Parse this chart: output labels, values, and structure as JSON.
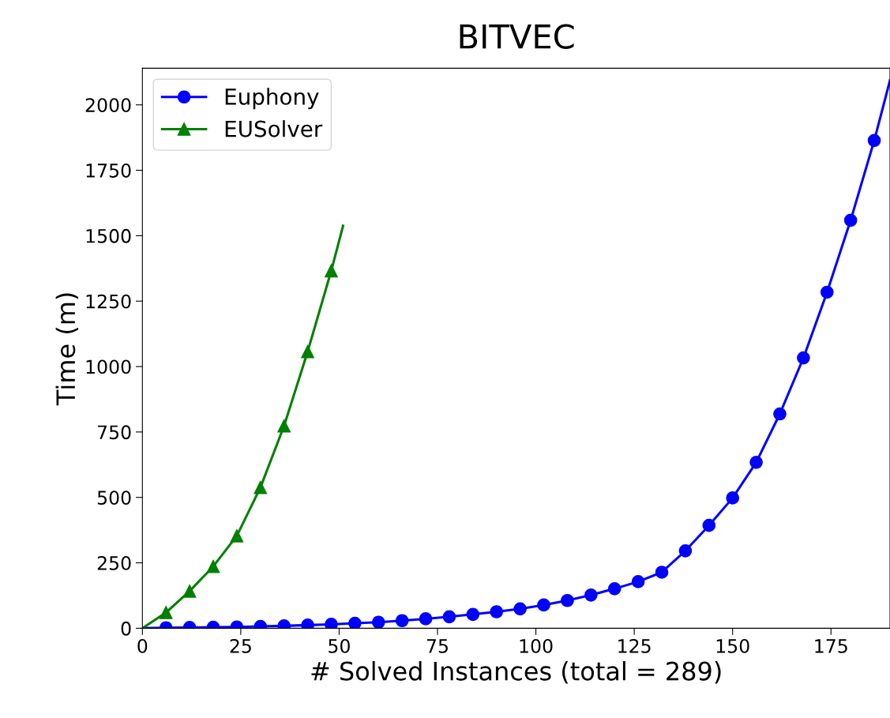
{
  "chart_data": {
    "type": "line",
    "title": "BITVEC",
    "xlabel": "# Solved Instances (total = 289)",
    "ylabel": "Time (m)",
    "xlim": [
      0,
      190
    ],
    "ylim": [
      0,
      2140
    ],
    "xticks": [
      0,
      25,
      50,
      75,
      100,
      125,
      150,
      175
    ],
    "yticks": [
      0,
      250,
      500,
      750,
      1000,
      1250,
      1500,
      1750,
      2000
    ],
    "grid": false,
    "legend": "top left",
    "series": [
      {
        "name": "Euphony",
        "color": "#0000ff",
        "marker": "circle",
        "x": [
          0,
          6,
          12,
          18,
          24,
          30,
          36,
          42,
          48,
          54,
          60,
          66,
          72,
          78,
          84,
          90,
          96,
          102,
          108,
          114,
          120,
          126,
          132,
          138,
          144,
          150,
          156,
          162,
          168,
          174,
          180,
          186,
          190
        ],
        "values": [
          0,
          2,
          3,
          4,
          5,
          7,
          9,
          12,
          15,
          19,
          23,
          29,
          36,
          44,
          53,
          63,
          74,
          89,
          106,
          127,
          151,
          178,
          214,
          296,
          393,
          498,
          634,
          819,
          1033,
          1284,
          1559,
          1864,
          2094
        ]
      },
      {
        "name": "EUSolver",
        "color": "#008000",
        "marker": "triangle",
        "x": [
          0,
          6,
          12,
          18,
          24,
          30,
          36,
          42,
          48,
          51
        ],
        "values": [
          0,
          60,
          142,
          236,
          353,
          538,
          773,
          1057,
          1366,
          1538
        ]
      }
    ]
  }
}
